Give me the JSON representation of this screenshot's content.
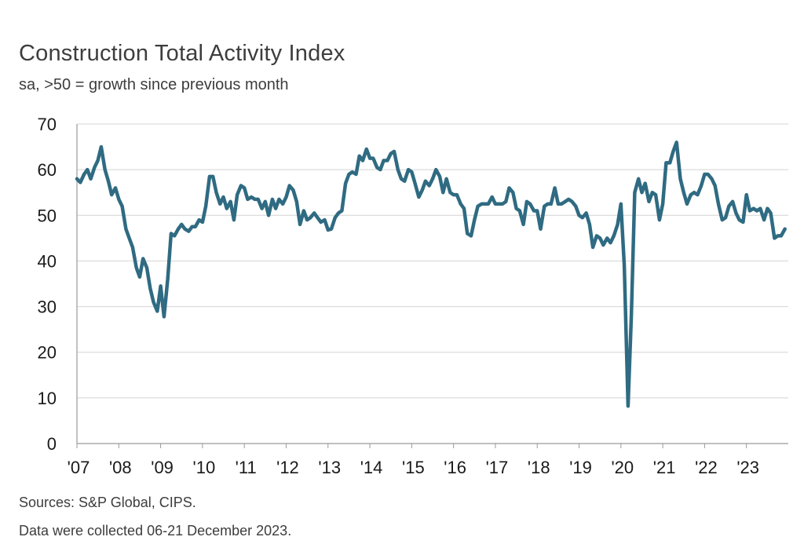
{
  "chart_data": {
    "type": "line",
    "title": "Construction Total Activity Index",
    "subtitle": "sa, >50 = growth since previous month",
    "xlabel": "",
    "ylabel": "",
    "ylim": [
      0,
      70
    ],
    "yticks": [
      0,
      10,
      20,
      30,
      40,
      50,
      60,
      70
    ],
    "xlim": [
      2007,
      2024
    ],
    "x_tick_labels": [
      "'07",
      "'08",
      "'09",
      "'10",
      "'11",
      "'12",
      "'13",
      "'14",
      "'15",
      "'16",
      "'17",
      "'18",
      "'19",
      "'20",
      "'21",
      "'22",
      "'23"
    ],
    "grid": true,
    "line_color": "#2f6b82",
    "series": [
      {
        "name": "Construction Total Activity Index",
        "x": [
          2007.0,
          2007.08,
          2007.17,
          2007.25,
          2007.33,
          2007.42,
          2007.5,
          2007.58,
          2007.67,
          2007.75,
          2007.83,
          2007.92,
          2008.0,
          2008.08,
          2008.17,
          2008.25,
          2008.33,
          2008.42,
          2008.5,
          2008.58,
          2008.67,
          2008.75,
          2008.83,
          2008.92,
          2009.0,
          2009.08,
          2009.17,
          2009.25,
          2009.33,
          2009.42,
          2009.5,
          2009.58,
          2009.67,
          2009.75,
          2009.83,
          2009.92,
          2010.0,
          2010.08,
          2010.17,
          2010.25,
          2010.33,
          2010.42,
          2010.5,
          2010.58,
          2010.67,
          2010.75,
          2010.83,
          2010.92,
          2011.0,
          2011.08,
          2011.17,
          2011.25,
          2011.33,
          2011.42,
          2011.5,
          2011.58,
          2011.67,
          2011.75,
          2011.83,
          2011.92,
          2012.0,
          2012.08,
          2012.17,
          2012.25,
          2012.33,
          2012.42,
          2012.5,
          2012.58,
          2012.67,
          2012.75,
          2012.83,
          2012.92,
          2013.0,
          2013.08,
          2013.17,
          2013.25,
          2013.33,
          2013.42,
          2013.5,
          2013.58,
          2013.67,
          2013.75,
          2013.83,
          2013.92,
          2014.0,
          2014.08,
          2014.17,
          2014.25,
          2014.33,
          2014.42,
          2014.5,
          2014.58,
          2014.67,
          2014.75,
          2014.83,
          2014.92,
          2015.0,
          2015.08,
          2015.17,
          2015.25,
          2015.33,
          2015.42,
          2015.5,
          2015.58,
          2015.67,
          2015.75,
          2015.83,
          2015.92,
          2016.0,
          2016.08,
          2016.17,
          2016.25,
          2016.33,
          2016.42,
          2016.5,
          2016.58,
          2016.67,
          2016.75,
          2016.83,
          2016.92,
          2017.0,
          2017.08,
          2017.17,
          2017.25,
          2017.33,
          2017.42,
          2017.5,
          2017.58,
          2017.67,
          2017.75,
          2017.83,
          2017.92,
          2018.0,
          2018.08,
          2018.17,
          2018.25,
          2018.33,
          2018.42,
          2018.5,
          2018.58,
          2018.67,
          2018.75,
          2018.83,
          2018.92,
          2019.0,
          2019.08,
          2019.17,
          2019.25,
          2019.33,
          2019.42,
          2019.5,
          2019.58,
          2019.67,
          2019.75,
          2019.83,
          2019.92,
          2020.0,
          2020.08,
          2020.17,
          2020.25,
          2020.33,
          2020.42,
          2020.5,
          2020.58,
          2020.67,
          2020.75,
          2020.83,
          2020.92,
          2021.0,
          2021.08,
          2021.17,
          2021.25,
          2021.33,
          2021.42,
          2021.5,
          2021.58,
          2021.67,
          2021.75,
          2021.83,
          2021.92,
          2022.0,
          2022.08,
          2022.17,
          2022.25,
          2022.33,
          2022.42,
          2022.5,
          2022.58,
          2022.67,
          2022.75,
          2022.83,
          2022.92,
          2023.0,
          2023.08,
          2023.17,
          2023.25,
          2023.33,
          2023.42,
          2023.5,
          2023.58,
          2023.67,
          2023.75,
          2023.83,
          2023.92
        ],
        "y": [
          58.0,
          57.2,
          59.0,
          60.0,
          58.0,
          60.5,
          62.0,
          65.0,
          60.0,
          57.5,
          54.5,
          56.0,
          53.5,
          52.0,
          47.0,
          45.0,
          43.0,
          38.5,
          36.5,
          40.5,
          38.5,
          34.0,
          31.0,
          29.0,
          34.5,
          27.8,
          36.0,
          46.0,
          45.5,
          47.0,
          48.0,
          47.0,
          46.5,
          47.5,
          47.5,
          49.0,
          48.5,
          52.0,
          58.5,
          58.5,
          55.0,
          52.5,
          54.0,
          51.5,
          53.0,
          49.0,
          54.5,
          56.5,
          56.0,
          53.5,
          54.0,
          53.5,
          53.5,
          51.5,
          53.0,
          50.0,
          53.5,
          51.5,
          53.5,
          52.5,
          54.0,
          56.5,
          55.5,
          53.0,
          48.0,
          51.0,
          49.0,
          49.5,
          50.5,
          49.5,
          48.5,
          49.0,
          46.8,
          47.0,
          49.5,
          50.5,
          51.0,
          57.0,
          59.0,
          59.5,
          59.0,
          63.0,
          62.0,
          64.5,
          62.5,
          62.5,
          60.5,
          60.0,
          62.0,
          62.0,
          63.5,
          64.0,
          60.0,
          58.0,
          57.5,
          60.0,
          59.5,
          57.0,
          54.0,
          55.5,
          57.5,
          56.5,
          58.0,
          60.0,
          58.5,
          55.0,
          58.0,
          55.0,
          54.5,
          54.5,
          52.5,
          51.5,
          46.0,
          45.5,
          49.0,
          52.0,
          52.5,
          52.5,
          52.5,
          54.0,
          52.5,
          52.5,
          52.5,
          53.0,
          56.0,
          55.0,
          51.5,
          51.0,
          48.0,
          53.0,
          52.5,
          51.0,
          51.0,
          47.0,
          52.0,
          52.5,
          52.5,
          56.0,
          52.5,
          52.5,
          53.0,
          53.5,
          53.0,
          52.0,
          50.0,
          49.5,
          50.5,
          48.0,
          43.0,
          45.5,
          45.0,
          43.5,
          45.0,
          44.0,
          45.5,
          48.0,
          52.5,
          39.0,
          8.2,
          28.0,
          55.0,
          58.0,
          55.0,
          57.0,
          53.0,
          55.0,
          54.5,
          49.0,
          52.5,
          61.5,
          61.5,
          64.0,
          66.0,
          58.0,
          55.0,
          52.5,
          54.5,
          55.0,
          54.5,
          56.5,
          59.0,
          59.0,
          58.0,
          56.5,
          52.5,
          49.0,
          49.5,
          52.0,
          53.0,
          50.5,
          49.0,
          48.5,
          54.5,
          51.0,
          51.5,
          51.0,
          51.5,
          49.0,
          51.5,
          50.5,
          45.0,
          45.5,
          45.5,
          47.0
        ]
      }
    ]
  },
  "footer": {
    "sources": "Sources: S&P Global, CIPS.",
    "note": "Data were collected 06-21 December 2023."
  }
}
